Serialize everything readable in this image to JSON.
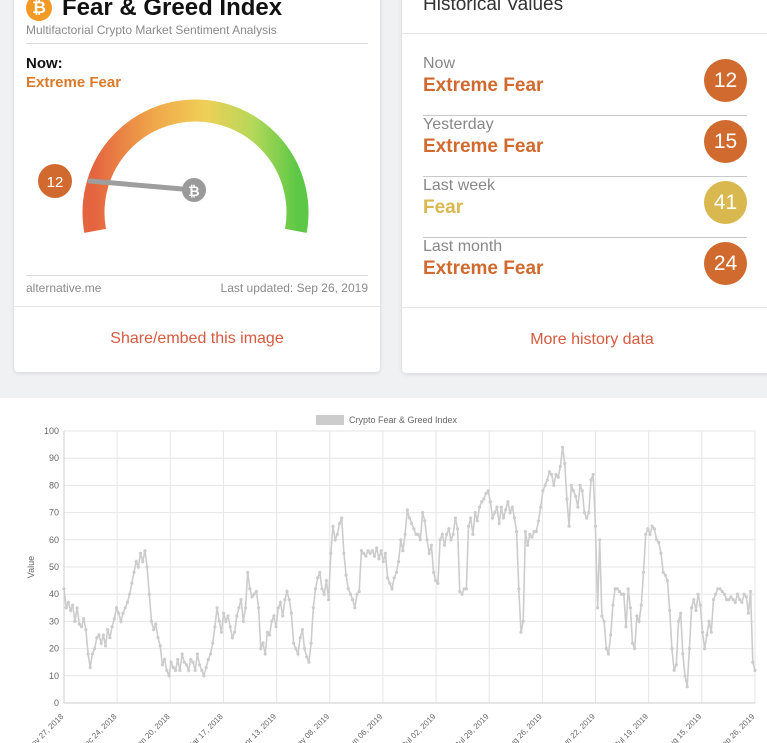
{
  "fg_card": {
    "title": "Fear & Greed Index",
    "subtitle": "Multifactorial Crypto Market Sentiment Analysis",
    "now_label": "Now:",
    "now_value": "Extreme Fear",
    "gauge_value": "12",
    "btc_symbol": "₿",
    "site": "alternative.me",
    "last_updated": "Last updated: Sep 26, 2019",
    "share_label": "Share/embed this image"
  },
  "history": {
    "title": "Historical Values",
    "rows": [
      {
        "label": "Now",
        "value": "Extreme Fear",
        "score": "12",
        "color": "#d06a2e"
      },
      {
        "label": "Yesterday",
        "value": "Extreme Fear",
        "score": "15",
        "color": "#d06a2e"
      },
      {
        "label": "Last week",
        "value": "Fear",
        "score": "41",
        "color": "#d9b84f"
      },
      {
        "label": "Last month",
        "value": "Extreme Fear",
        "score": "24",
        "color": "#d06a2e"
      }
    ],
    "value_colors": {
      "extreme_fear": "#d06a2e",
      "fear": "#d9b84f"
    },
    "more_label": "More history data"
  },
  "chart_data": {
    "type": "line",
    "legend": "Crypto Fear & Greed Index",
    "legend_position": "top",
    "ylabel": "Value",
    "ylim": [
      0,
      100
    ],
    "yticks": [
      0,
      10,
      20,
      30,
      40,
      50,
      60,
      70,
      80,
      90,
      100
    ],
    "grid": true,
    "line_color": "#cccccc",
    "x_tick_labels": [
      "Nov 27, 2018",
      "Dec 24, 2018",
      "Jan 20, 2018",
      "Mar 17, 2018",
      "Apr 13, 2019",
      "May 08, 2019",
      "Jun 06, 2019",
      "Jul 02, 2019",
      "Jul 29, 2019",
      "Aug 26, 2019",
      "Jun 22, 2019",
      "Jul 19, 2019",
      "Aug 15, 2019",
      "Sep 26, 2019"
    ],
    "values": [
      42,
      35,
      37,
      34,
      36,
      30,
      35,
      29,
      28,
      31,
      27,
      18,
      13,
      18,
      20,
      24,
      25,
      22,
      25,
      21,
      27,
      24,
      28,
      31,
      35,
      33,
      30,
      33,
      35,
      37,
      40,
      44,
      48,
      52,
      50,
      55,
      52,
      56,
      50,
      40,
      30,
      27,
      29,
      24,
      21,
      14,
      16,
      12,
      10,
      15,
      13,
      12,
      16,
      12,
      18,
      15,
      14,
      12,
      16,
      15,
      12,
      18,
      14,
      12,
      10,
      13,
      16,
      18,
      22,
      28,
      35,
      30,
      26,
      33,
      30,
      32,
      28,
      24,
      26,
      32,
      35,
      38,
      30,
      35,
      48,
      42,
      39,
      40,
      41,
      35,
      20,
      22,
      18,
      26,
      25,
      30,
      32,
      28,
      35,
      37,
      32,
      38,
      41,
      38,
      33,
      22,
      20,
      18,
      24,
      27,
      20,
      17,
      15,
      22,
      35,
      42,
      46,
      48,
      42,
      40,
      45,
      38,
      55,
      65,
      60,
      62,
      66,
      68,
      55,
      47,
      42,
      40,
      38,
      35,
      40,
      41,
      56,
      55,
      54,
      56,
      55,
      56,
      54,
      57,
      53,
      56,
      52,
      55,
      46,
      44,
      42,
      46,
      48,
      52,
      60,
      56,
      62,
      71,
      68,
      66,
      64,
      62,
      62,
      60,
      70,
      67,
      60,
      55,
      58,
      48,
      45,
      44,
      60,
      62,
      58,
      62,
      64,
      60,
      62,
      68,
      64,
      41,
      40,
      42,
      42,
      65,
      68,
      62,
      70,
      67,
      72,
      74,
      75,
      77,
      78,
      74,
      68,
      70,
      72,
      66,
      72,
      68,
      71,
      74,
      70,
      72,
      68,
      63,
      42,
      26,
      30,
      63,
      58,
      62,
      61,
      63,
      63,
      67,
      72,
      78,
      80,
      82,
      85,
      84,
      80,
      84,
      83,
      87,
      94,
      88,
      75,
      65,
      80,
      78,
      76,
      72,
      80,
      78,
      70,
      68,
      70,
      82,
      84,
      65,
      35,
      60,
      32,
      30,
      20,
      18,
      25,
      36,
      42,
      42,
      41,
      40,
      40,
      28,
      42,
      35,
      22,
      20,
      32,
      30,
      36,
      48,
      62,
      64,
      62,
      65,
      64,
      60,
      59,
      55,
      48,
      47,
      45,
      34,
      20,
      12,
      14,
      30,
      33,
      18,
      10,
      6,
      20,
      35,
      38,
      34,
      40,
      36,
      26,
      20,
      25,
      30,
      26,
      38,
      40,
      42,
      42,
      41,
      40,
      38,
      38,
      39,
      38,
      37,
      40,
      38,
      37,
      40,
      39,
      33,
      41,
      15,
      12
    ]
  }
}
